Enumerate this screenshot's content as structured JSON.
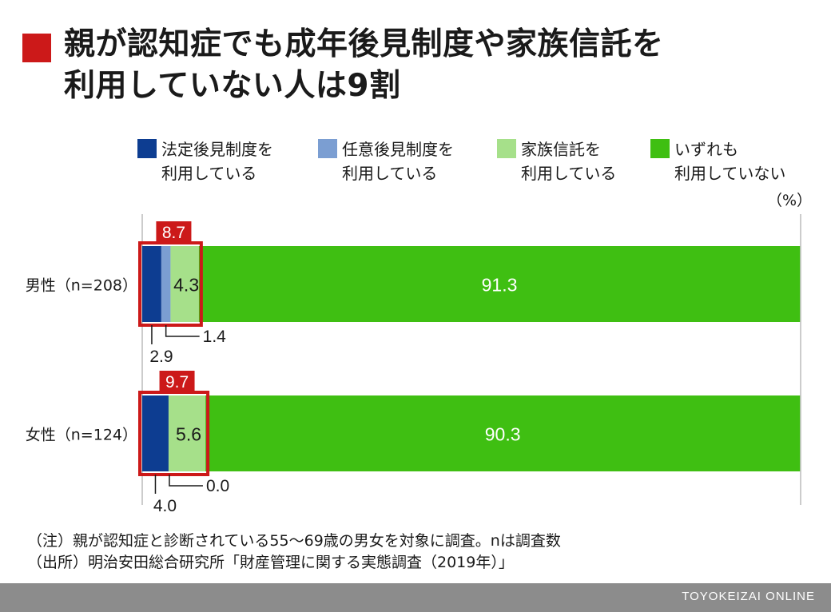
{
  "title": {
    "line1": "親が認知症でも成年後見制度や家族信託を",
    "line2": "利用していない人は9割"
  },
  "colors": {
    "title_marker": "#cc1919",
    "highlight_box": "#cc1919",
    "footer_bar": "#8c8c8c",
    "grid": "#bbbbbb"
  },
  "legend": [
    {
      "label": "法定後見制度を\n利用している",
      "color": "#0d3d91"
    },
    {
      "label": "任意後見制度を\n利用している",
      "color": "#7b9ed2"
    },
    {
      "label": "家族信託を\n利用している",
      "color": "#a6e08a"
    },
    {
      "label": "いずれも\n利用していない",
      "color": "#3fbf12"
    }
  ],
  "unit": "（%）",
  "chart_data": {
    "type": "bar",
    "orientation": "horizontal",
    "stacked": true,
    "categories": [
      "男性（n=208）",
      "女性（n=124）"
    ],
    "series": [
      {
        "name": "法定後見制度を利用している",
        "values": [
          2.9,
          4.0
        ]
      },
      {
        "name": "任意後見制度を利用している",
        "values": [
          1.4,
          0.0
        ]
      },
      {
        "name": "家族信託を利用している",
        "values": [
          4.3,
          5.6
        ]
      },
      {
        "name": "いずれも利用していない",
        "values": [
          91.3,
          90.3
        ]
      }
    ],
    "highlight_totals": [
      "8.7",
      "9.7"
    ],
    "data_labels": [
      {
        "inside": [
          "4.3",
          "91.3"
        ],
        "below_left": "2.9",
        "below_right": "1.4"
      },
      {
        "inside": [
          "5.6",
          "90.3"
        ],
        "below_left": "4.0",
        "below_right": "0.0"
      }
    ],
    "xlim": [
      0,
      100
    ],
    "legend_position": "top"
  },
  "notes": {
    "line1": "（注）親が認知症と診断されている55〜69歳の男女を対象に調査。nは調査数",
    "line2": "（出所）明治安田総合研究所「財産管理に関する実態調査（2019年）」"
  },
  "footer": {
    "credit": "TOYOKEIZAI ONLINE"
  }
}
